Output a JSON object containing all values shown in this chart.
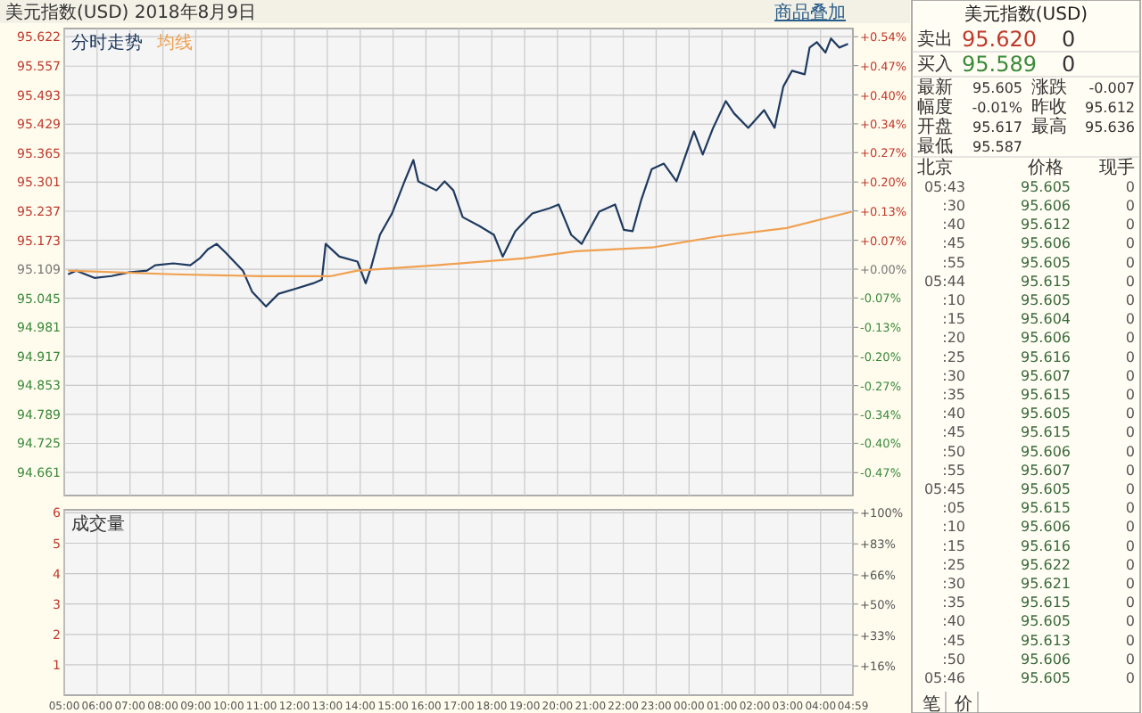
{
  "chart_data": [
    {
      "type": "line",
      "title": "美元指数(USD) 2018年8月9日",
      "annotations": [
        "商品叠加"
      ],
      "legend": "top left",
      "grid": true,
      "tick_labels": "y",
      "xlim": [
        "2018-08-09T05:00",
        "2018-08-10T04:59"
      ],
      "xticks": [
        {
          "value": "2018-08-09T05:00",
          "label": null
        },
        {
          "value": "2018-08-09T06:00",
          "label": null
        },
        {
          "value": "2018-08-09T07:00",
          "label": null
        },
        {
          "value": "2018-08-09T08:00",
          "label": null
        },
        {
          "value": "2018-08-09T09:00",
          "label": null
        },
        {
          "value": "2018-08-09T10:00",
          "label": null
        },
        {
          "value": "2018-08-09T11:00",
          "label": null
        },
        {
          "value": "2018-08-09T12:00",
          "label": null
        },
        {
          "value": "2018-08-09T13:00",
          "label": null
        },
        {
          "value": "2018-08-09T14:00",
          "label": null
        },
        {
          "value": "2018-08-09T15:00",
          "label": null
        },
        {
          "value": "2018-08-09T16:00",
          "label": null
        },
        {
          "value": "2018-08-09T17:00",
          "label": null
        },
        {
          "value": "2018-08-09T18:00",
          "label": null
        },
        {
          "value": "2018-08-09T19:00",
          "label": null
        },
        {
          "value": "2018-08-09T20:00",
          "label": null
        },
        {
          "value": "2018-08-09T21:00",
          "label": null
        },
        {
          "value": "2018-08-09T22:00",
          "label": null
        },
        {
          "value": "2018-08-09T23:00",
          "label": null
        },
        {
          "value": "2018-08-10T00:00",
          "label": null
        },
        {
          "value": "2018-08-10T01:00",
          "label": null
        },
        {
          "value": "2018-08-10T02:00",
          "label": null
        },
        {
          "value": "2018-08-10T03:00",
          "label": null
        },
        {
          "value": "2018-08-10T04:00",
          "label": null
        }
      ],
      "ylim": [
        94.61,
        95.64
      ],
      "yticks": [
        95.622,
        95.557,
        95.493,
        95.429,
        95.365,
        95.301,
        95.237,
        95.173,
        95.109,
        95.045,
        94.981,
        94.917,
        94.853,
        94.789,
        94.725,
        94.661
      ],
      "y2lim": [
        -0.525,
        0.558
      ],
      "y2ticks": [
        {
          "value": 0.539,
          "label": "+0.54%"
        },
        {
          "value": 0.472,
          "label": "+0.47%"
        },
        {
          "value": 0.404,
          "label": "+0.40%"
        },
        {
          "value": 0.337,
          "label": "+0.34%"
        },
        {
          "value": 0.27,
          "label": "+0.27%"
        },
        {
          "value": 0.202,
          "label": "+0.20%"
        },
        {
          "value": 0.135,
          "label": "+0.13%"
        },
        {
          "value": 0.067,
          "label": "+0.07%"
        },
        {
          "value": 0,
          "label": "+0.00%"
        },
        {
          "value": -0.067,
          "label": "-0.07%"
        },
        {
          "value": -0.135,
          "label": "-0.13%"
        },
        {
          "value": -0.202,
          "label": "-0.20%"
        },
        {
          "value": -0.27,
          "label": "-0.27%"
        },
        {
          "value": -0.337,
          "label": "-0.34%"
        },
        {
          "value": -0.404,
          "label": "-0.40%"
        },
        {
          "value": -0.472,
          "label": "-0.47%"
        }
      ],
      "series": [
        {
          "name": "分时走势",
          "color": "#1f3a5f",
          "x": [
            "2018-08-09T05:07",
            "2018-08-09T05:22",
            "2018-08-09T05:55",
            "2018-08-09T06:26",
            "2018-08-09T06:58",
            "2018-08-09T07:31",
            "2018-08-09T07:46",
            "2018-08-09T08:19",
            "2018-08-09T08:50",
            "2018-08-09T09:07",
            "2018-08-09T09:22",
            "2018-08-09T09:38",
            "2018-08-09T09:55",
            "2018-08-09T10:26",
            "2018-08-09T10:43",
            "2018-08-09T11:08",
            "2018-08-09T11:31",
            "2018-08-09T12:02",
            "2018-08-09T12:34",
            "2018-08-09T12:50",
            "2018-08-09T12:57",
            "2018-08-09T13:22",
            "2018-08-09T13:55",
            "2018-08-09T14:10",
            "2018-08-09T14:20",
            "2018-08-09T14:36",
            "2018-08-09T14:58",
            "2018-08-09T15:21",
            "2018-08-09T15:37",
            "2018-08-09T15:46",
            "2018-08-09T16:19",
            "2018-08-09T16:34",
            "2018-08-09T16:50",
            "2018-08-09T17:07",
            "2018-08-09T17:38",
            "2018-08-09T18:04",
            "2018-08-09T18:20",
            "2018-08-09T18:43",
            "2018-08-09T19:14",
            "2018-08-09T19:46",
            "2018-08-09T20:02",
            "2018-08-09T20:25",
            "2018-08-09T20:44",
            "2018-08-09T21:16",
            "2018-08-09T21:45",
            "2018-08-09T22:01",
            "2018-08-09T22:17",
            "2018-08-09T22:33",
            "2018-08-09T22:52",
            "2018-08-09T23:14",
            "2018-08-09T23:37",
            "2018-08-10T00:09",
            "2018-08-10T00:25",
            "2018-08-10T00:44",
            "2018-08-10T01:07",
            "2018-08-10T01:22",
            "2018-08-10T01:48",
            "2018-08-10T02:17",
            "2018-08-10T02:36",
            "2018-08-10T02:52",
            "2018-08-10T03:08",
            "2018-08-10T03:31",
            "2018-08-10T03:40",
            "2018-08-10T03:53",
            "2018-08-10T04:09",
            "2018-08-10T04:19",
            "2018-08-10T04:34",
            "2018-08-10T04:50"
          ],
          "values": [
            95.098,
            95.106,
            95.09,
            95.094,
            95.102,
            95.106,
            95.118,
            95.122,
            95.118,
            95.133,
            95.153,
            95.165,
            95.145,
            95.106,
            95.059,
            95.027,
            95.055,
            95.066,
            95.078,
            95.086,
            95.165,
            95.137,
            95.126,
            95.078,
            95.114,
            95.185,
            95.232,
            95.303,
            95.35,
            95.303,
            95.283,
            95.303,
            95.283,
            95.224,
            95.204,
            95.185,
            95.137,
            95.193,
            95.232,
            95.244,
            95.252,
            95.185,
            95.165,
            95.236,
            95.252,
            95.196,
            95.193,
            95.263,
            95.33,
            95.342,
            95.303,
            95.413,
            95.362,
            95.421,
            95.48,
            95.453,
            95.421,
            95.46,
            95.421,
            95.512,
            95.547,
            95.539,
            95.598,
            95.61,
            95.587,
            95.618,
            95.598,
            95.606
          ]
        },
        {
          "name": "均线",
          "color": "#f0a050",
          "x": [
            "2018-08-09T05:07",
            "2018-08-09T08:19",
            "2018-08-09T10:58",
            "2018-08-09T13:07",
            "2018-08-09T13:55",
            "2018-08-09T16:19",
            "2018-08-09T18:58",
            "2018-08-09T20:34",
            "2018-08-09T22:52",
            "2018-08-10T00:50",
            "2018-08-10T02:58",
            "2018-08-10T04:57"
          ],
          "values": [
            95.106,
            95.098,
            95.094,
            95.094,
            95.106,
            95.118,
            95.133,
            95.149,
            95.157,
            95.181,
            95.2,
            95.236
          ]
        }
      ]
    },
    {
      "type": "line",
      "title": "成交量",
      "grid": true,
      "xlim": [
        "2018-08-09T05:00",
        "2018-08-10T04:59"
      ],
      "xticks": [
        {
          "value": "2018-08-09T05:00",
          "label": "05:00"
        },
        {
          "value": "2018-08-09T06:00",
          "label": "06:00"
        },
        {
          "value": "2018-08-09T07:00",
          "label": "07:00"
        },
        {
          "value": "2018-08-09T08:00",
          "label": "08:00"
        },
        {
          "value": "2018-08-09T09:00",
          "label": "09:00"
        },
        {
          "value": "2018-08-09T10:00",
          "label": "10:00"
        },
        {
          "value": "2018-08-09T11:00",
          "label": "11:00"
        },
        {
          "value": "2018-08-09T12:00",
          "label": "12:00"
        },
        {
          "value": "2018-08-09T13:00",
          "label": "13:00"
        },
        {
          "value": "2018-08-09T14:00",
          "label": "14:00"
        },
        {
          "value": "2018-08-09T15:00",
          "label": "15:00"
        },
        {
          "value": "2018-08-09T16:00",
          "label": "16:00"
        },
        {
          "value": "2018-08-09T17:00",
          "label": "17:00"
        },
        {
          "value": "2018-08-09T18:00",
          "label": "18:00"
        },
        {
          "value": "2018-08-09T19:00",
          "label": "19:00"
        },
        {
          "value": "2018-08-09T20:00",
          "label": "20:00"
        },
        {
          "value": "2018-08-09T21:00",
          "label": "21:00"
        },
        {
          "value": "2018-08-09T22:00",
          "label": "22:00"
        },
        {
          "value": "2018-08-09T23:00",
          "label": "23:00"
        },
        {
          "value": "2018-08-10T00:00",
          "label": "00:00"
        },
        {
          "value": "2018-08-10T01:00",
          "label": "01:00"
        },
        {
          "value": "2018-08-10T02:00",
          "label": "02:00"
        },
        {
          "value": "2018-08-10T03:00",
          "label": "03:00"
        },
        {
          "value": "2018-08-10T04:00",
          "label": "04:00"
        },
        {
          "value": "2018-08-10T04:59",
          "label": "04:59"
        }
      ],
      "ylim": [
        0,
        6.1
      ],
      "yticks": [
        1,
        2,
        3,
        4,
        5,
        6
      ],
      "y2lim": [
        0,
        101.7
      ],
      "y2ticks": [
        {
          "value": 16,
          "label": "+16%"
        },
        {
          "value": 33,
          "label": "+33%"
        },
        {
          "value": 50,
          "label": "+50%"
        },
        {
          "value": 66,
          "label": "+66%"
        },
        {
          "value": 83,
          "label": "+83%"
        },
        {
          "value": 100,
          "label": "+100%"
        }
      ]
    },
    {
      "type": "other",
      "title": "美元指数(USD)",
      "annotations": [
        "卖出",
        "95.620",
        "0",
        "买入",
        "95.589",
        "0",
        "最新",
        "95.605",
        "涨跌",
        "-0.007",
        "幅度",
        "-0.01%",
        "昨收",
        "95.612",
        "开盘",
        "95.617",
        "最高",
        "95.636",
        "最低",
        "95.587",
        "北京",
        "价格",
        "现手",
        "05:43",
        "95.605",
        "0",
        ":30",
        "95.606",
        "0",
        ":40",
        "95.612",
        "0",
        ":45",
        "95.606",
        "0",
        ":55",
        "95.605",
        "0",
        "05:44",
        "95.615",
        "0",
        ":10",
        "95.605",
        "0",
        ":15",
        "95.604",
        "0",
        ":20",
        "95.606",
        "0",
        ":25",
        "95.616",
        "0",
        ":30",
        "95.607",
        "0",
        ":35",
        "95.615",
        "0",
        ":40",
        "95.605",
        "0",
        ":45",
        "95.615",
        "0",
        ":50",
        "95.606",
        "0",
        ":55",
        "95.607",
        "0",
        "05:45",
        "95.605",
        "0",
        ":05",
        "95.615",
        "0",
        ":10",
        "95.606",
        "0",
        ":15",
        "95.616",
        "0",
        ":25",
        "95.622",
        "0",
        ":30",
        "95.621",
        "0",
        ":35",
        "95.615",
        "0",
        ":40",
        "95.605",
        "0",
        ":45",
        "95.613",
        "0",
        ":50",
        "95.606",
        "0",
        "05:46",
        "95.605",
        "0",
        "笔",
        "价"
      ]
    }
  ]
}
